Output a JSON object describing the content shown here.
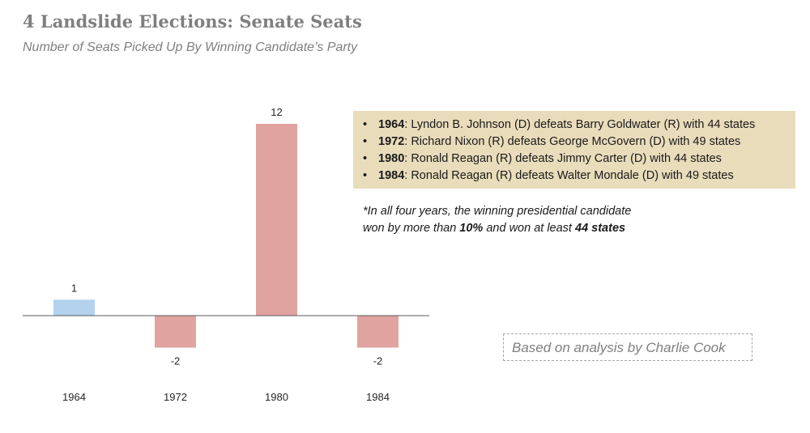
{
  "title": "4 Landslide Elections: Senate Seats",
  "subtitle": "Number of Seats Picked Up By Winning Candidate’s Party",
  "colors": {
    "gain": "#b4d2ee",
    "loss": "#e0a3a0",
    "axis": "#595959",
    "info_bg": "#e9dcbb"
  },
  "chart_data": {
    "type": "bar",
    "title": "4 Landslide Elections: Senate Seats",
    "subtitle": "Number of Seats Picked Up By Winning Candidate’s Party",
    "categories": [
      "1964",
      "1972",
      "1980",
      "1984"
    ],
    "values": [
      1,
      -2,
      12,
      -2
    ],
    "data_labels": [
      "1",
      "-2",
      "12",
      "-2"
    ],
    "bar_colors": [
      "#b4d2ee",
      "#e0a3a0",
      "#e0a3a0",
      "#e0a3a0"
    ],
    "xlabel": "",
    "ylabel": "",
    "ylim": [
      -3,
      13
    ],
    "grid": false,
    "legend": "none"
  },
  "info_box": {
    "items": [
      {
        "year": "1964",
        "text": ": Lyndon B. Johnson (D) defeats Barry Goldwater (R) with 44 states"
      },
      {
        "year": "1972",
        "text": ": Richard Nixon (R) defeats George McGovern (D) with 49 states"
      },
      {
        "year": "1980",
        "text": ": Ronald Reagan (R) defeats Jimmy Carter (D) with 44 states"
      },
      {
        "year": "1984",
        "text": ": Ronald Reagan (R) defeats Walter Mondale (D) with 49 states"
      }
    ]
  },
  "note": {
    "line1": "*In all four years, the winning presidential candidate",
    "line2_a": "won by more than ",
    "line2_b": "10%",
    "line2_c": " and won at least ",
    "line2_d": "44 states"
  },
  "credit": "Based on analysis by Charlie Cook"
}
